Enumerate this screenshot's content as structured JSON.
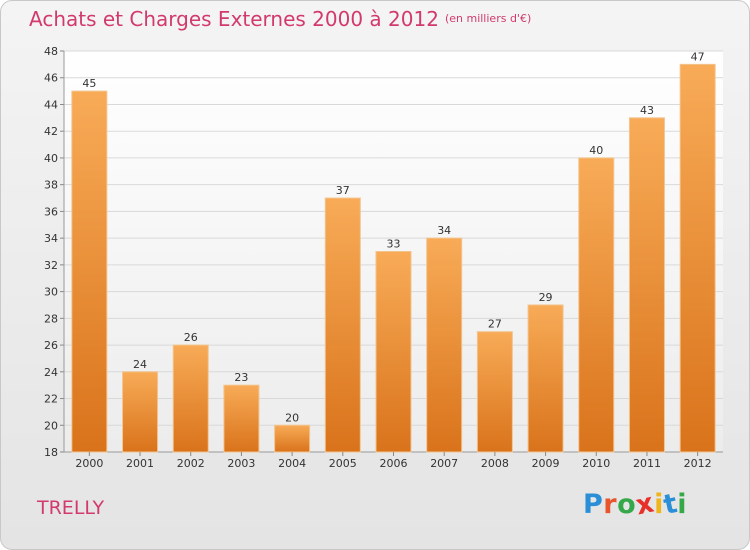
{
  "title": "Achats et Charges Externes 2000 à 2012",
  "unit": "(en milliers d'€)",
  "commune": "TRELLY",
  "logo": {
    "text": "Proxiti",
    "colors": [
      "#2a8fd6",
      "#e8552d",
      "#35a84a",
      "#e8302a",
      "#f0b41c",
      "#2a8fd6",
      "#35a84a"
    ]
  },
  "colors": {
    "bar_top": "#f8ab57",
    "bar_bottom": "#d9731b",
    "title": "#d23a6e"
  },
  "chart_data": {
    "type": "bar",
    "categories": [
      "2000",
      "2001",
      "2002",
      "2003",
      "2004",
      "2005",
      "2006",
      "2007",
      "2008",
      "2009",
      "2010",
      "2011",
      "2012"
    ],
    "values": [
      45,
      24,
      26,
      23,
      20,
      37,
      33,
      34,
      27,
      29,
      40,
      43,
      47
    ],
    "ylim": [
      18,
      48
    ],
    "yticks": [
      18,
      20,
      22,
      24,
      26,
      28,
      30,
      32,
      34,
      36,
      38,
      40,
      42,
      44,
      46,
      48
    ],
    "grid": true
  }
}
